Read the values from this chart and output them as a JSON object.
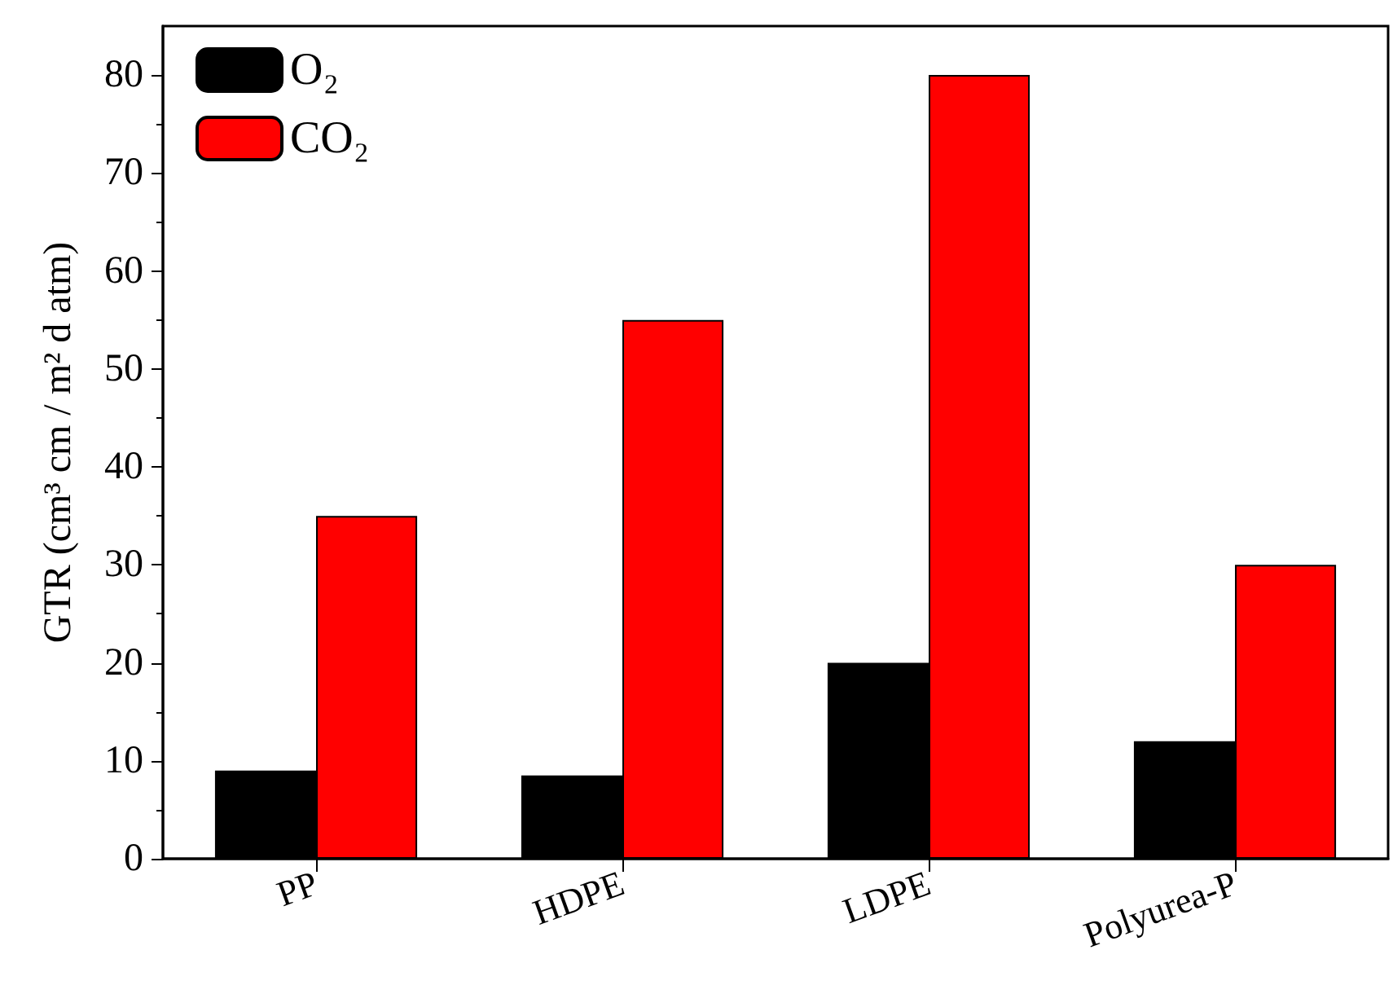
{
  "chart_data": {
    "type": "bar",
    "ylabel": "GTR (cm³ cm / m² d atm)",
    "categories": [
      "PP",
      "HDPE",
      "LDPE",
      "Polyurea-P"
    ],
    "series": [
      {
        "name": "O₂",
        "color": "#000000",
        "values": [
          9,
          8.5,
          20,
          12
        ]
      },
      {
        "name": "CO₂",
        "color": "#ff0000",
        "values": [
          35,
          55,
          80,
          30
        ]
      }
    ],
    "ylim": [
      0,
      85
    ],
    "yticks": [
      0,
      10,
      20,
      30,
      40,
      50,
      60,
      70,
      80
    ],
    "grid": false,
    "legend": "top left"
  }
}
